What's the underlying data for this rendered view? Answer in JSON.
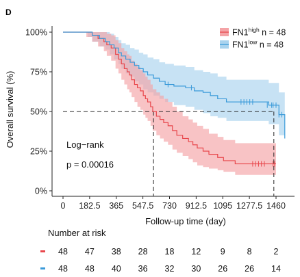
{
  "panel_label": "D",
  "chart_data": {
    "type": "line",
    "subtype": "kaplan-meier",
    "xlabel": "Follow-up time (day)",
    "ylabel": "Overall survival (%)",
    "xlim": [
      -70,
      1560
    ],
    "ylim": [
      0,
      1.05
    ],
    "x_ticks": [
      0,
      182.5,
      365,
      547.5,
      730,
      912.5,
      1095,
      1277.5,
      1460
    ],
    "x_tick_labels": [
      "0",
      "182.5",
      "365",
      "547.5",
      "730",
      "912.5",
      "1095",
      "1277.5",
      "1460"
    ],
    "y_ticks": [
      0,
      0.25,
      0.5,
      0.75,
      1.0
    ],
    "y_tick_labels": [
      "0%",
      "25%",
      "50%",
      "75%",
      "100%"
    ],
    "grid": false,
    "legend_position": "top-right",
    "median_reference_y": 0.5,
    "median_reference_x": [
      620,
      1445
    ],
    "series": [
      {
        "name_main": "FN1",
        "name_sup": "high",
        "name_rest": " n = 48",
        "color": "#e8474c",
        "band_color": "#f4a3a6",
        "steps": [
          [
            0,
            1.0
          ],
          [
            160,
            1.0
          ],
          [
            200,
            0.98
          ],
          [
            240,
            0.96
          ],
          [
            280,
            0.94
          ],
          [
            300,
            0.92
          ],
          [
            330,
            0.9
          ],
          [
            360,
            0.86
          ],
          [
            380,
            0.83
          ],
          [
            400,
            0.8
          ],
          [
            420,
            0.77
          ],
          [
            440,
            0.75
          ],
          [
            455,
            0.73
          ],
          [
            470,
            0.7
          ],
          [
            490,
            0.67
          ],
          [
            510,
            0.65
          ],
          [
            530,
            0.63
          ],
          [
            550,
            0.6
          ],
          [
            565,
            0.58
          ],
          [
            580,
            0.56
          ],
          [
            600,
            0.53
          ],
          [
            615,
            0.5
          ],
          [
            640,
            0.47
          ],
          [
            665,
            0.45
          ],
          [
            690,
            0.43
          ],
          [
            720,
            0.41
          ],
          [
            750,
            0.38
          ],
          [
            780,
            0.35
          ],
          [
            820,
            0.33
          ],
          [
            860,
            0.31
          ],
          [
            890,
            0.29
          ],
          [
            920,
            0.27
          ],
          [
            960,
            0.25
          ],
          [
            1000,
            0.23
          ],
          [
            1060,
            0.21
          ],
          [
            1100,
            0.19
          ],
          [
            1180,
            0.17
          ],
          [
            1460,
            0.17
          ]
        ],
        "lower": [
          [
            0,
            1.0
          ],
          [
            160,
            0.97
          ],
          [
            200,
            0.94
          ],
          [
            240,
            0.91
          ],
          [
            280,
            0.88
          ],
          [
            300,
            0.85
          ],
          [
            330,
            0.82
          ],
          [
            360,
            0.77
          ],
          [
            380,
            0.74
          ],
          [
            400,
            0.7
          ],
          [
            420,
            0.67
          ],
          [
            440,
            0.64
          ],
          [
            455,
            0.62
          ],
          [
            470,
            0.59
          ],
          [
            490,
            0.56
          ],
          [
            510,
            0.53
          ],
          [
            530,
            0.51
          ],
          [
            550,
            0.48
          ],
          [
            565,
            0.46
          ],
          [
            580,
            0.44
          ],
          [
            600,
            0.41
          ],
          [
            615,
            0.38
          ],
          [
            640,
            0.35
          ],
          [
            665,
            0.33
          ],
          [
            690,
            0.31
          ],
          [
            720,
            0.29
          ],
          [
            750,
            0.26
          ],
          [
            780,
            0.24
          ],
          [
            820,
            0.22
          ],
          [
            860,
            0.2
          ],
          [
            890,
            0.18
          ],
          [
            920,
            0.16
          ],
          [
            960,
            0.15
          ],
          [
            1000,
            0.14
          ],
          [
            1060,
            0.13
          ],
          [
            1100,
            0.12
          ],
          [
            1180,
            0.1
          ],
          [
            1460,
            0.1
          ]
        ],
        "upper": [
          [
            0,
            1.0
          ],
          [
            160,
            1.0
          ],
          [
            200,
            1.0
          ],
          [
            240,
            1.0
          ],
          [
            280,
            1.0
          ],
          [
            300,
            0.99
          ],
          [
            330,
            0.98
          ],
          [
            360,
            0.95
          ],
          [
            380,
            0.93
          ],
          [
            400,
            0.9
          ],
          [
            420,
            0.88
          ],
          [
            440,
            0.86
          ],
          [
            455,
            0.85
          ],
          [
            470,
            0.82
          ],
          [
            490,
            0.8
          ],
          [
            510,
            0.78
          ],
          [
            530,
            0.76
          ],
          [
            550,
            0.74
          ],
          [
            565,
            0.72
          ],
          [
            580,
            0.7
          ],
          [
            600,
            0.67
          ],
          [
            615,
            0.64
          ],
          [
            640,
            0.62
          ],
          [
            665,
            0.6
          ],
          [
            690,
            0.58
          ],
          [
            720,
            0.56
          ],
          [
            750,
            0.53
          ],
          [
            780,
            0.5
          ],
          [
            820,
            0.47
          ],
          [
            860,
            0.45
          ],
          [
            890,
            0.43
          ],
          [
            920,
            0.41
          ],
          [
            960,
            0.39
          ],
          [
            1000,
            0.36
          ],
          [
            1060,
            0.34
          ],
          [
            1100,
            0.32
          ],
          [
            1180,
            0.3
          ],
          [
            1460,
            0.3
          ]
        ],
        "censored": [
          [
            1300,
            0.17
          ],
          [
            1320,
            0.17
          ],
          [
            1340,
            0.17
          ],
          [
            1360,
            0.17
          ],
          [
            1380,
            0.17
          ],
          [
            1440,
            0.17
          ],
          [
            1450,
            0.17
          ]
        ]
      },
      {
        "name_main": "FN1",
        "name_sup": "low",
        "name_rest": " n = 48",
        "color": "#3a9ad9",
        "band_color": "#a9d3ee",
        "steps": [
          [
            0,
            1.0
          ],
          [
            170,
            1.0
          ],
          [
            200,
            0.98
          ],
          [
            250,
            0.96
          ],
          [
            290,
            0.94
          ],
          [
            320,
            0.92
          ],
          [
            350,
            0.9
          ],
          [
            380,
            0.87
          ],
          [
            400,
            0.85
          ],
          [
            430,
            0.83
          ],
          [
            460,
            0.81
          ],
          [
            490,
            0.79
          ],
          [
            520,
            0.77
          ],
          [
            550,
            0.75
          ],
          [
            580,
            0.73
          ],
          [
            620,
            0.71
          ],
          [
            660,
            0.69
          ],
          [
            700,
            0.67
          ],
          [
            760,
            0.66
          ],
          [
            840,
            0.65
          ],
          [
            900,
            0.63
          ],
          [
            960,
            0.62
          ],
          [
            1010,
            0.6
          ],
          [
            1060,
            0.58
          ],
          [
            1120,
            0.56
          ],
          [
            1410,
            0.54
          ],
          [
            1480,
            0.48
          ],
          [
            1520,
            0.33
          ]
        ],
        "lower": [
          [
            0,
            1.0
          ],
          [
            170,
            0.97
          ],
          [
            200,
            0.94
          ],
          [
            250,
            0.91
          ],
          [
            290,
            0.89
          ],
          [
            320,
            0.86
          ],
          [
            350,
            0.83
          ],
          [
            380,
            0.8
          ],
          [
            400,
            0.77
          ],
          [
            430,
            0.74
          ],
          [
            460,
            0.72
          ],
          [
            490,
            0.69
          ],
          [
            520,
            0.67
          ],
          [
            550,
            0.64
          ],
          [
            580,
            0.62
          ],
          [
            620,
            0.6
          ],
          [
            660,
            0.58
          ],
          [
            700,
            0.56
          ],
          [
            760,
            0.54
          ],
          [
            840,
            0.53
          ],
          [
            900,
            0.51
          ],
          [
            960,
            0.49
          ],
          [
            1010,
            0.47
          ],
          [
            1060,
            0.46
          ],
          [
            1120,
            0.44
          ],
          [
            1410,
            0.42
          ],
          [
            1480,
            0.35
          ],
          [
            1520,
            0.2
          ]
        ],
        "upper": [
          [
            0,
            1.0
          ],
          [
            170,
            1.0
          ],
          [
            200,
            1.0
          ],
          [
            250,
            1.0
          ],
          [
            290,
            1.0
          ],
          [
            320,
            0.99
          ],
          [
            350,
            0.97
          ],
          [
            380,
            0.95
          ],
          [
            400,
            0.93
          ],
          [
            430,
            0.92
          ],
          [
            460,
            0.9
          ],
          [
            490,
            0.89
          ],
          [
            520,
            0.87
          ],
          [
            550,
            0.86
          ],
          [
            580,
            0.84
          ],
          [
            620,
            0.83
          ],
          [
            660,
            0.81
          ],
          [
            700,
            0.8
          ],
          [
            760,
            0.79
          ],
          [
            840,
            0.78
          ],
          [
            900,
            0.76
          ],
          [
            960,
            0.75
          ],
          [
            1010,
            0.74
          ],
          [
            1060,
            0.72
          ],
          [
            1120,
            0.7
          ],
          [
            1410,
            0.68
          ],
          [
            1480,
            0.62
          ],
          [
            1520,
            0.48
          ]
        ],
        "censored": [
          [
            720,
            0.67
          ],
          [
            880,
            0.65
          ],
          [
            1220,
            0.56
          ],
          [
            1240,
            0.56
          ],
          [
            1260,
            0.56
          ],
          [
            1280,
            0.56
          ],
          [
            1300,
            0.56
          ],
          [
            1400,
            0.54
          ],
          [
            1430,
            0.54
          ],
          [
            1440,
            0.54
          ],
          [
            1460,
            0.54
          ],
          [
            1480,
            0.48
          ],
          [
            1500,
            0.48
          ]
        ]
      }
    ]
  },
  "annotation": {
    "line1": "Log−rank",
    "line2": "p = 0.00016"
  },
  "risk_table": {
    "title": "Number at risk",
    "rows": [
      {
        "color": "#e8474c",
        "values": [
          "48",
          "47",
          "38",
          "28",
          "18",
          "12",
          "9",
          "8",
          "2"
        ]
      },
      {
        "color": "#3a9ad9",
        "values": [
          "48",
          "48",
          "40",
          "36",
          "32",
          "30",
          "26",
          "26",
          "14"
        ]
      }
    ]
  }
}
